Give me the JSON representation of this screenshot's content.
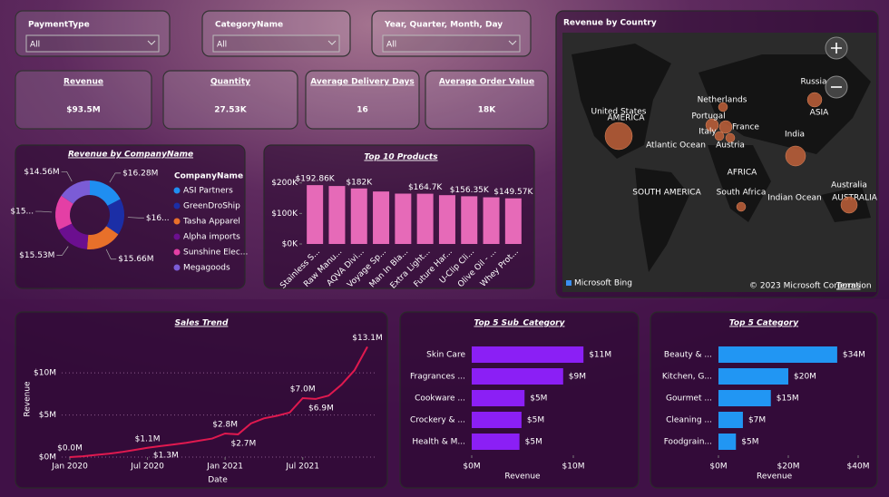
{
  "filters": [
    {
      "label": "PaymentType",
      "value": "All"
    },
    {
      "label": "CategoryName",
      "value": "All"
    },
    {
      "label": "Year, Quarter, Month, Day",
      "value": "All"
    }
  ],
  "cards": [
    {
      "title": "Revenue",
      "value": "$93.5M"
    },
    {
      "title": "Quantity",
      "value": "27.53K"
    },
    {
      "title": "Average Delivery Days",
      "value": "16"
    },
    {
      "title": "Average Order Value",
      "value": "18K"
    }
  ],
  "map": {
    "title": "Revenue by Country",
    "countries": [
      "United States",
      "Netherlands",
      "Portugal",
      "France",
      "Italy",
      "Austria",
      "Russia",
      "India",
      "South Africa",
      "Australia"
    ],
    "regions": [
      "AMERICA",
      "SOUTH AMERICA",
      "AFRICA",
      "ASIA",
      "AUSTRALIA",
      "Atlantic Ocean",
      "Indian Ocean"
    ],
    "provider": "Microsoft Bing",
    "attribution": "© 2023 Microsoft Corporation",
    "terms": "Terms"
  },
  "chart_data": [
    {
      "type": "donut",
      "title": "Revenue by CompanyName",
      "legend_title": "CompanyName",
      "categories": [
        "ASI Partners",
        "GreenDroShip",
        "Tasha Apparel",
        "Alpha imports",
        "Sunshine Elec...",
        "Megagoods"
      ],
      "values": [
        16.28,
        16.0,
        15.66,
        15.53,
        15.47,
        14.56
      ],
      "value_labels": [
        "$16.28M",
        "$16...",
        "$15.66M",
        "$15.53M",
        "$15...",
        "$14.56M"
      ],
      "colors": [
        "#1f8ef1",
        "#1b2ea6",
        "#e8702a",
        "#6b0f8f",
        "#e43fa5",
        "#7b5cd6"
      ]
    },
    {
      "type": "bar",
      "title": "Top 10 Products",
      "categories": [
        "Stainless S...",
        "Raw Manu...",
        "AQVA Divi...",
        "Voyage Sp...",
        "Man In Bla...",
        "Extra Light...",
        "Future Har...",
        "U-Clip Cli...",
        "Olive Oil - ...",
        "Whey Prot..."
      ],
      "values": [
        192.86,
        190,
        182,
        172,
        165,
        164.7,
        160,
        156.35,
        153,
        149.57
      ],
      "value_labels": [
        "$192.86K",
        null,
        "$182K",
        null,
        null,
        "$164.7K",
        null,
        "$156.35K",
        null,
        "$149.57K"
      ],
      "color": "#e66ab8",
      "ylim": [
        0,
        220
      ],
      "yticks": [
        {
          "value": 0,
          "label": "$0K"
        },
        {
          "value": 100,
          "label": "$100K"
        },
        {
          "value": 200,
          "label": "$200K"
        }
      ]
    },
    {
      "type": "line",
      "title": "Sales Trend",
      "xlabel": "Date",
      "ylabel": "Revenue",
      "x": [
        "2020-01",
        "2020-02",
        "2020-03",
        "2020-04",
        "2020-05",
        "2020-06",
        "2020-07",
        "2020-08",
        "2020-09",
        "2020-10",
        "2020-11",
        "2020-12",
        "2021-01",
        "2021-02",
        "2021-03",
        "2021-04",
        "2021-05",
        "2021-06",
        "2021-07",
        "2021-08",
        "2021-09",
        "2021-10",
        "2021-11",
        "2021-12"
      ],
      "values": [
        0.0,
        0.1,
        0.25,
        0.4,
        0.6,
        0.85,
        1.1,
        1.3,
        1.5,
        1.7,
        1.95,
        2.2,
        2.8,
        2.7,
        4.0,
        4.6,
        4.9,
        5.3,
        7.0,
        6.9,
        7.3,
        8.6,
        10.3,
        13.1
      ],
      "value_labels": [
        "$0.0M",
        null,
        null,
        null,
        null,
        null,
        "$1.1M",
        "$1.3M",
        null,
        null,
        null,
        null,
        "$2.8M",
        "$2.7M",
        null,
        null,
        null,
        null,
        "$7.0M",
        "$6.9M",
        null,
        null,
        null,
        "$13.1M"
      ],
      "color": "#e0194f",
      "ylim": [
        0,
        14
      ],
      "yticks": [
        {
          "value": 0,
          "label": "$0M"
        },
        {
          "value": 5,
          "label": "$5M"
        },
        {
          "value": 10,
          "label": "$10M"
        }
      ],
      "xticks": [
        {
          "value": "2020-01",
          "label": "Jan 2020"
        },
        {
          "value": "2020-07",
          "label": "Jul 2020"
        },
        {
          "value": "2021-01",
          "label": "Jan 2021"
        },
        {
          "value": "2021-07",
          "label": "Jul 2021"
        }
      ]
    },
    {
      "type": "hbar",
      "title": "Top 5 Sub_Category",
      "xlabel": "Revenue",
      "categories": [
        "Skin Care",
        "Fragrances ...",
        "Cookware ...",
        "Crockery & ...",
        "Health & M..."
      ],
      "values": [
        11,
        9,
        5.2,
        4.9,
        4.7
      ],
      "value_labels": [
        "$11M",
        "$9M",
        "$5M",
        "$5M",
        "$5M"
      ],
      "color": "#8b1ff5",
      "xlim": [
        0,
        12.5
      ],
      "xticks": [
        {
          "value": 0,
          "label": "$0M"
        },
        {
          "value": 10,
          "label": "$10M"
        }
      ]
    },
    {
      "type": "hbar",
      "title": "Top 5 Category",
      "xlabel": "Revenue",
      "categories": [
        "Beauty & ...",
        "Kitchen, G...",
        "Gourmet ...",
        "Cleaning ...",
        "Foodgrain..."
      ],
      "values": [
        34,
        20,
        15,
        7,
        5
      ],
      "value_labels": [
        "$34M",
        "$20M",
        "$15M",
        "$7M",
        "$5M"
      ],
      "color": "#2196f3",
      "xlim": [
        0,
        40
      ],
      "xticks": [
        {
          "value": 0,
          "label": "$0M"
        },
        {
          "value": 20,
          "label": "$20M"
        },
        {
          "value": 40,
          "label": "$40M"
        }
      ]
    }
  ]
}
